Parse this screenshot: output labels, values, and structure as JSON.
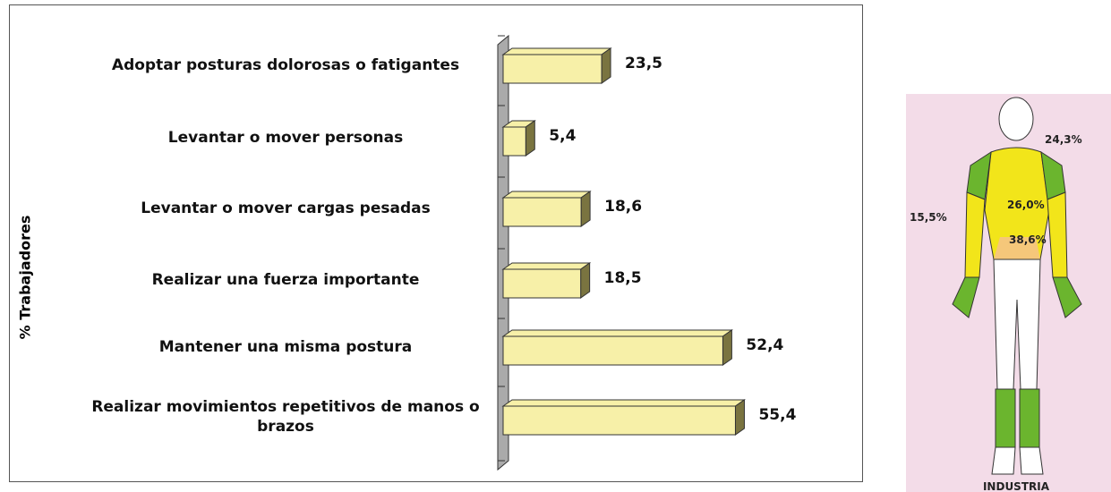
{
  "chart_data": {
    "type": "hbar",
    "y_label": "% Trabajadores",
    "categories": [
      "Adoptar posturas dolorosas o fatigantes",
      "Levantar o mover personas",
      "Levantar o mover cargas pesadas",
      "Realizar una fuerza importante",
      "Mantener una misma postura",
      "Realizar movimientos repetitivos de manos o brazos"
    ],
    "values": [
      23.5,
      5.4,
      18.6,
      18.5,
      52.4,
      55.4
    ],
    "value_labels": [
      "23,5",
      "5,4",
      "18,6",
      "18,5",
      "52,4",
      "55,4"
    ],
    "color": "#f7f0a8",
    "xlim": [
      0,
      60
    ]
  },
  "figure": {
    "labels": [
      "24,3%",
      "26,0%",
      "38,6%",
      "15,5%"
    ],
    "caption": "INDUSTRIA"
  }
}
